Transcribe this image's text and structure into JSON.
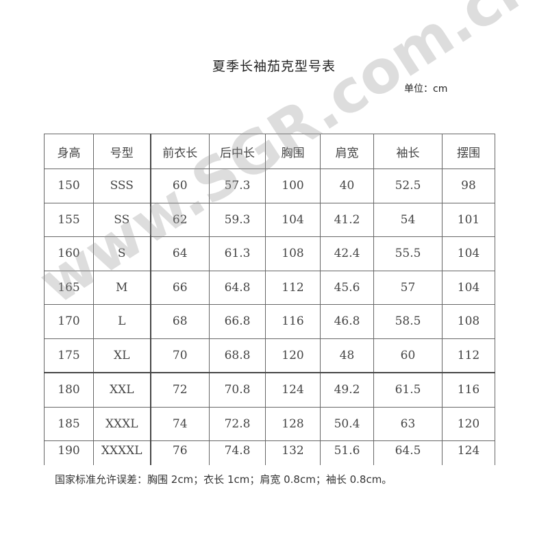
{
  "title": "夏季长袖茄克型号表",
  "unit": "单位：cm",
  "table": {
    "headers": [
      "身高",
      "号型",
      "前衣长",
      "后中长",
      "胸围",
      "肩宽",
      "袖长",
      "摆围"
    ],
    "rows": [
      [
        "150",
        "SSS",
        "60",
        "57.3",
        "100",
        "40",
        "52.5",
        "98"
      ],
      [
        "155",
        "SS",
        "62",
        "59.3",
        "104",
        "41.2",
        "54",
        "101"
      ],
      [
        "160",
        "S",
        "64",
        "61.3",
        "108",
        "42.4",
        "55.5",
        "104"
      ],
      [
        "165",
        "M",
        "66",
        "64.8",
        "112",
        "45.6",
        "57",
        "104"
      ],
      [
        "170",
        "L",
        "68",
        "66.8",
        "116",
        "46.8",
        "58.5",
        "108"
      ],
      [
        "175",
        "XL",
        "70",
        "68.8",
        "120",
        "48",
        "60",
        "112"
      ],
      [
        "180",
        "XXL",
        "72",
        "70.8",
        "124",
        "49.2",
        "61.5",
        "116"
      ],
      [
        "185",
        "XXXL",
        "74",
        "72.8",
        "128",
        "50.4",
        "63",
        "120"
      ],
      [
        "190",
        "XXXXL",
        "76",
        "74.8",
        "132",
        "51.6",
        "64.5",
        "124"
      ]
    ]
  },
  "note": "国家标准允许误差：胸围 2cm；衣长 1cm；肩宽 0.8cm；袖长 0.8cm。",
  "watermark": "www.SGR.com.cn"
}
